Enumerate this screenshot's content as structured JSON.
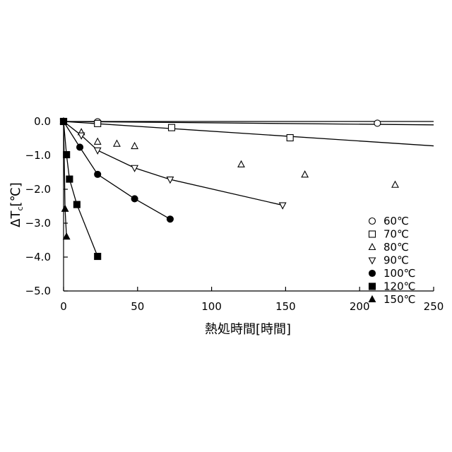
{
  "chart_data": {
    "type": "scatter",
    "title": "",
    "xlabel": "熱処時間[時間]",
    "ylabel_main": "ΔT",
    "ylabel_sub": "c",
    "ylabel_unit": "[℃]",
    "xlim": [
      0,
      250
    ],
    "ylim": [
      -5.0,
      0.0
    ],
    "xticks": [
      "0",
      "50",
      "100",
      "150",
      "200",
      "250"
    ],
    "xtick_values": [
      0,
      50,
      100,
      150,
      200,
      250
    ],
    "yticks": [
      "0.0",
      "−1.0",
      "−2.0",
      "−3.0",
      "−4.0",
      "−5.0"
    ],
    "ytick_values": [
      0,
      -1,
      -2,
      -3,
      -4,
      -5
    ],
    "grid": false,
    "legend_position": "bottom-right",
    "series": [
      {
        "name": "60℃",
        "marker": "circle-open",
        "x": [
          0,
          23,
          212
        ],
        "y": [
          0,
          -0.01,
          -0.05
        ],
        "fit_line": [
          [
            0,
            0
          ],
          [
            250,
            0
          ]
        ]
      },
      {
        "name": "70℃",
        "marker": "square-open",
        "x": [
          0,
          23,
          73,
          153
        ],
        "y": [
          0,
          -0.06,
          -0.18,
          -0.48
        ],
        "fit_line": [
          [
            0,
            0
          ],
          [
            250,
            -0.1
          ]
        ]
      },
      {
        "name": "80℃",
        "marker": "triangle-up-open",
        "x": [
          0,
          12,
          23,
          36,
          48,
          120,
          163,
          224
        ],
        "y": [
          0,
          -0.32,
          -0.6,
          -0.66,
          -0.73,
          -1.27,
          -1.57,
          -1.87
        ],
        "fit_line": [
          [
            0,
            0
          ],
          [
            250,
            -0.72
          ]
        ]
      },
      {
        "name": "90℃",
        "marker": "triangle-down-open",
        "x": [
          0,
          12,
          23,
          48,
          72,
          148
        ],
        "y": [
          0,
          -0.41,
          -0.85,
          -1.37,
          -1.71,
          -2.47
        ],
        "fit_line": null
      },
      {
        "name": "100℃",
        "marker": "circle-filled",
        "x": [
          0,
          11,
          23,
          48,
          72
        ],
        "y": [
          0,
          -0.76,
          -1.56,
          -2.28,
          -2.88
        ],
        "fit_line": null
      },
      {
        "name": "120℃",
        "marker": "square-filled",
        "x": [
          0,
          2,
          4,
          9,
          23
        ],
        "y": [
          0,
          -0.98,
          -1.7,
          -2.45,
          -3.98
        ],
        "fit_line": null
      },
      {
        "name": "150℃",
        "marker": "triangle-up-filled",
        "x": [
          0,
          1,
          2
        ],
        "y": [
          0,
          -2.58,
          -3.4
        ],
        "fit_line": null
      }
    ]
  }
}
